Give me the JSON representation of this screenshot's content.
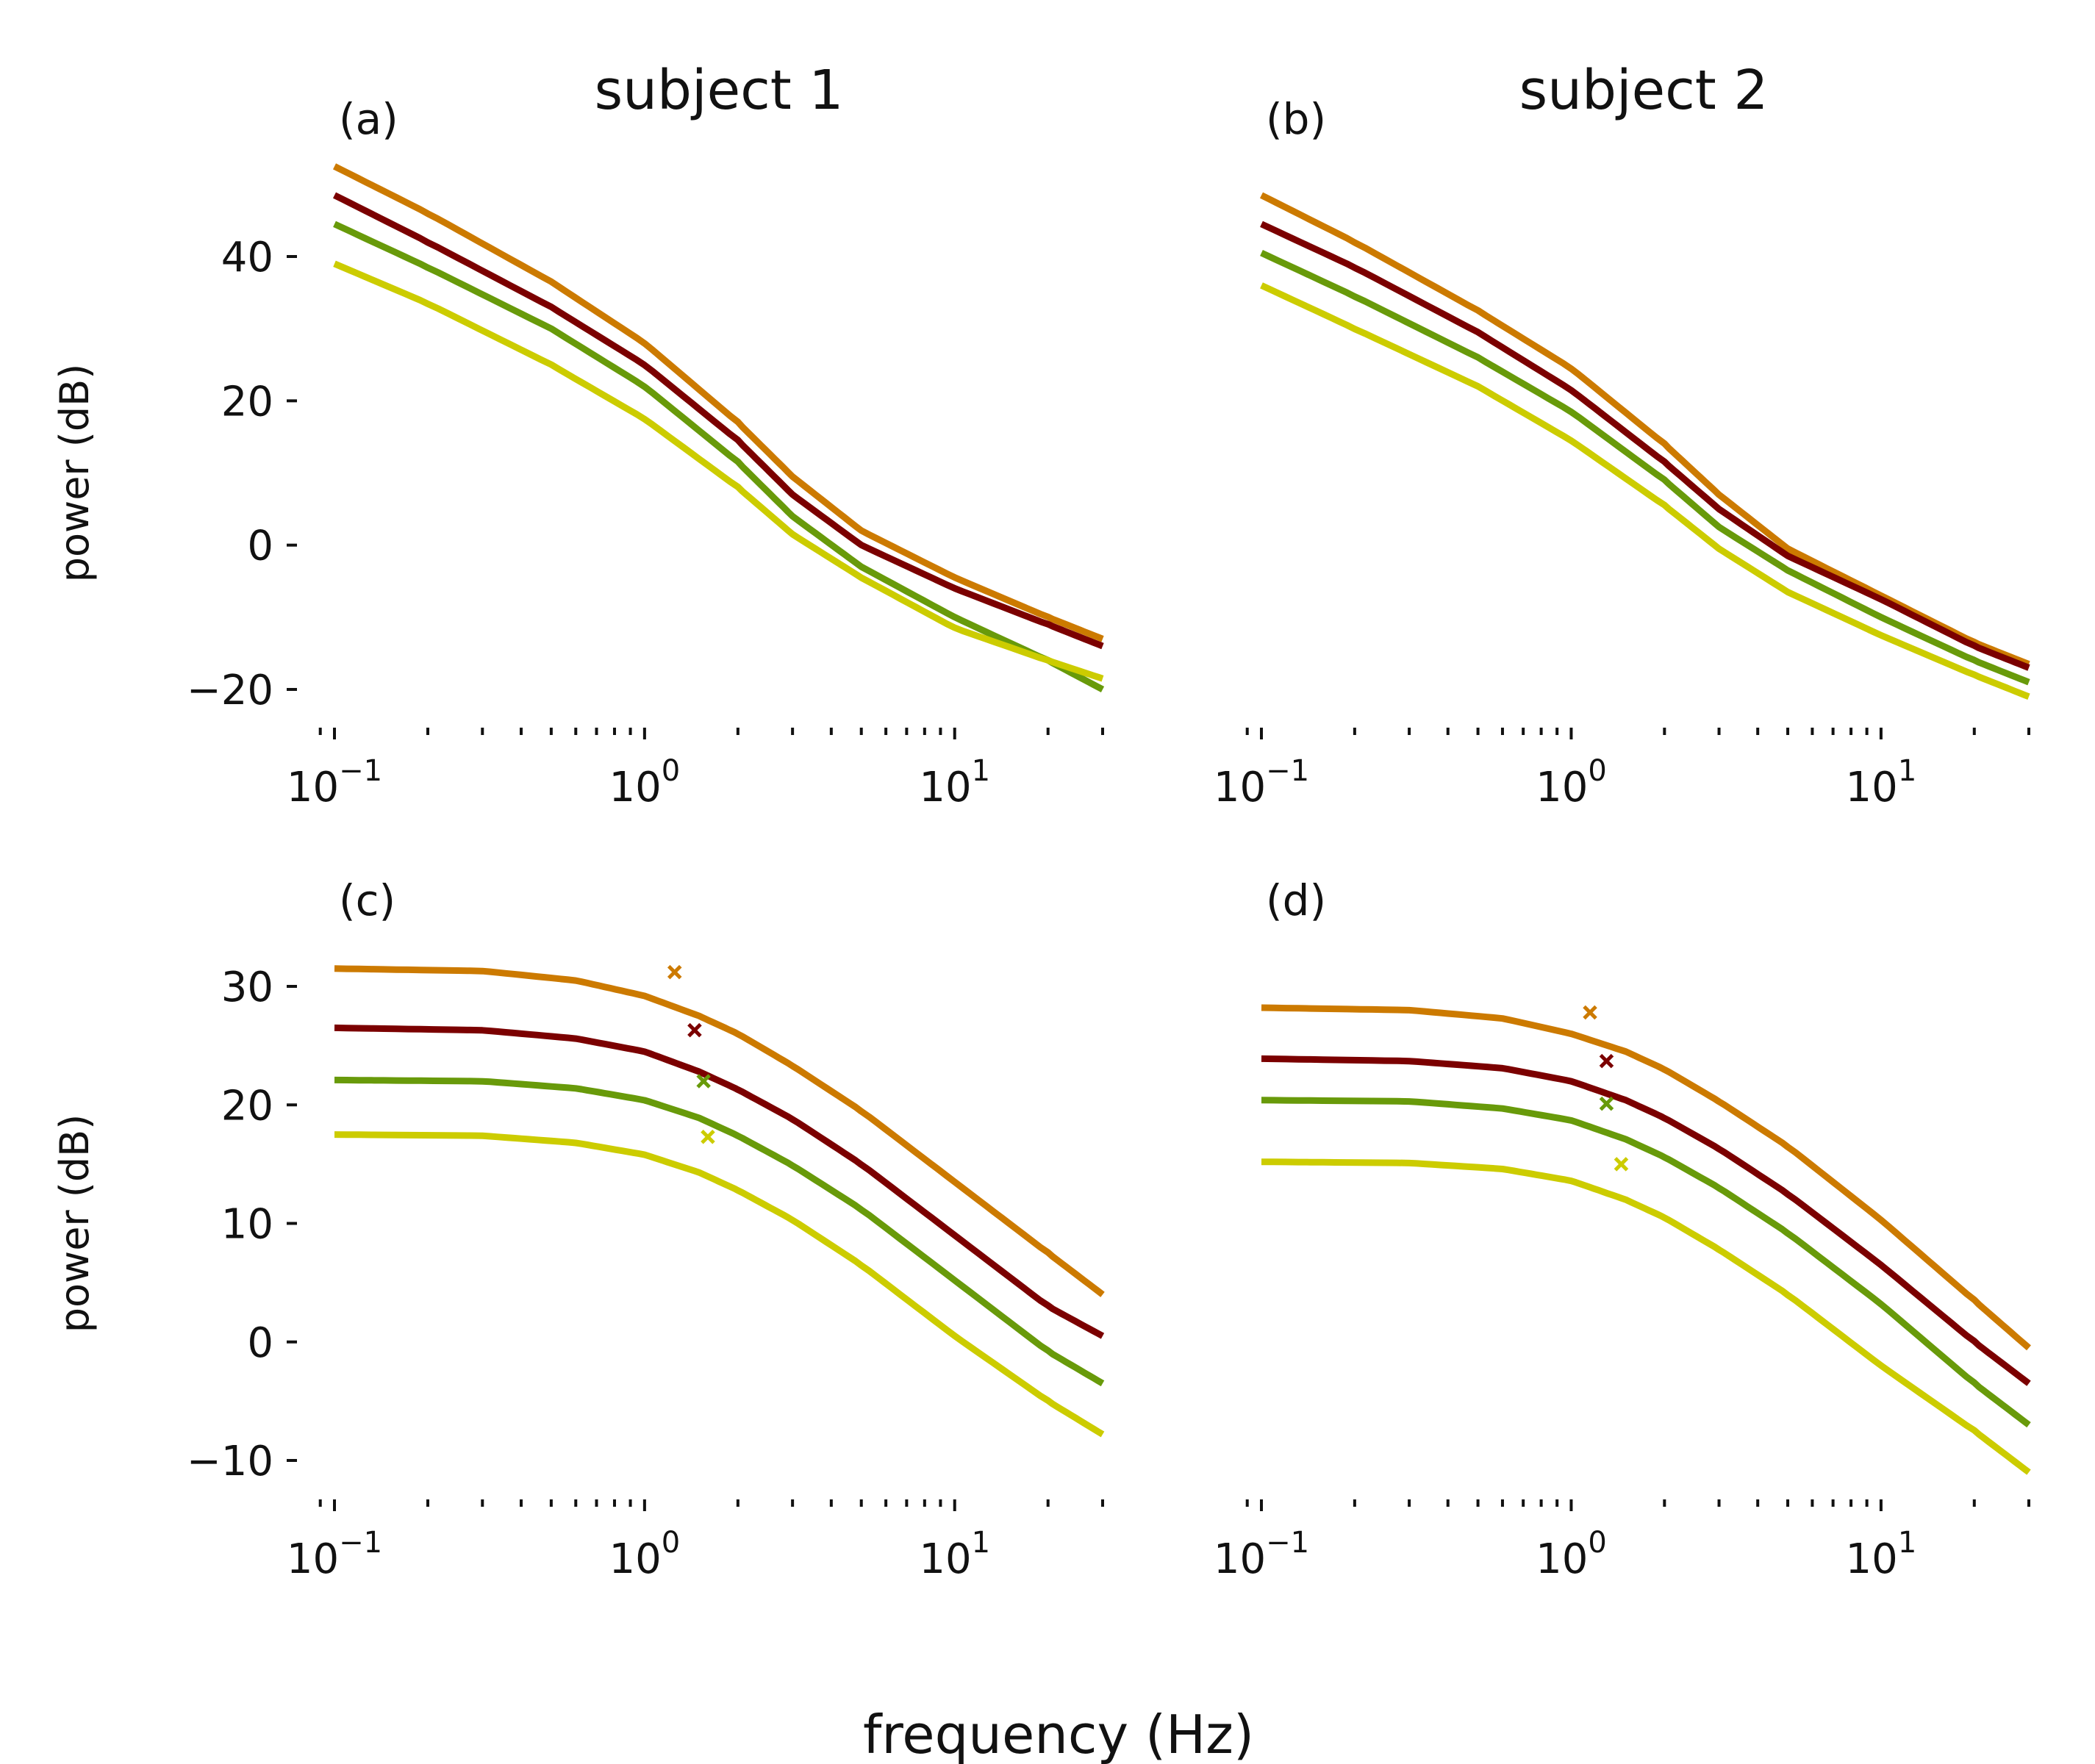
{
  "figure": {
    "column_titles": [
      "subject 1",
      "subject 2"
    ],
    "xlabel": "frequency (Hz)"
  },
  "colors": {
    "orange": "#cc7a00",
    "dark_red": "#7b0000",
    "green": "#689a0a",
    "yellow": "#cccc00"
  },
  "chart_data": [
    {
      "type": "line",
      "panel_label": "(a)",
      "title": "subject 1",
      "xlabel": "",
      "ylabel": "power (dB)",
      "xscale": "log",
      "xlim": [
        0.09,
        30
      ],
      "ylim": [
        -24,
        56
      ],
      "yticks": [
        -20,
        0,
        20,
        40
      ],
      "xticks": [
        0.1,
        1,
        10
      ],
      "xtick_labels": [
        {
          "base": "10",
          "exp": "−1"
        },
        {
          "base": "10",
          "exp": "0"
        },
        {
          "base": "10",
          "exp": "1"
        }
      ],
      "grid": false,
      "series": [
        {
          "color": "#cc7a00",
          "x": [
            0.1,
            0.2,
            0.5,
            1,
            2,
            3,
            5,
            10,
            20,
            30
          ],
          "y": [
            52.5,
            46,
            36.5,
            28,
            17,
            9.5,
            2,
            -4.5,
            -10,
            -13
          ]
        },
        {
          "color": "#7b0000",
          "x": [
            0.1,
            0.2,
            0.5,
            1,
            2,
            3,
            5,
            10,
            20,
            30
          ],
          "y": [
            48.5,
            42,
            33,
            25,
            14.5,
            7,
            0,
            -6,
            -11,
            -14
          ]
        },
        {
          "color": "#689a0a",
          "x": [
            0.1,
            0.2,
            0.5,
            1,
            2,
            3,
            5,
            10,
            20,
            30
          ],
          "y": [
            44.5,
            38.5,
            30,
            22,
            11.5,
            4,
            -3,
            -10,
            -16,
            -20
          ]
        },
        {
          "color": "#cccc00",
          "x": [
            0.1,
            0.2,
            0.5,
            1,
            2,
            3,
            5,
            10,
            20,
            30
          ],
          "y": [
            39,
            33.5,
            25,
            17.5,
            8,
            1.5,
            -4.5,
            -11.5,
            -16,
            -18.5
          ]
        }
      ]
    },
    {
      "type": "line",
      "panel_label": "(b)",
      "title": "subject 2",
      "xlabel": "",
      "ylabel": "",
      "xscale": "log",
      "xlim": [
        0.09,
        30
      ],
      "ylim": [
        -24,
        56
      ],
      "yticks": [],
      "xticks": [
        0.1,
        1,
        10
      ],
      "xtick_labels": [
        {
          "base": "10",
          "exp": "−1"
        },
        {
          "base": "10",
          "exp": "0"
        },
        {
          "base": "10",
          "exp": "1"
        }
      ],
      "grid": false,
      "series": [
        {
          "color": "#cc7a00",
          "x": [
            0.1,
            0.2,
            0.5,
            1,
            2,
            3,
            5,
            10,
            20,
            30
          ],
          "y": [
            48.5,
            42,
            32.5,
            24.5,
            14,
            7,
            -0.5,
            -7,
            -13.5,
            -16.5
          ]
        },
        {
          "color": "#7b0000",
          "x": [
            0.1,
            0.2,
            0.5,
            1,
            2,
            3,
            5,
            10,
            20,
            30
          ],
          "y": [
            44.5,
            38.5,
            29.5,
            21.5,
            11.5,
            5,
            -1.5,
            -7.5,
            -14,
            -17
          ]
        },
        {
          "color": "#689a0a",
          "x": [
            0.1,
            0.2,
            0.5,
            1,
            2,
            3,
            5,
            10,
            20,
            30
          ],
          "y": [
            40.5,
            34.5,
            26,
            18.5,
            9,
            2.5,
            -3.5,
            -10,
            -16,
            -19
          ]
        },
        {
          "color": "#cccc00",
          "x": [
            0.1,
            0.2,
            0.5,
            1,
            2,
            3,
            5,
            10,
            20,
            30
          ],
          "y": [
            36,
            30,
            22,
            14.5,
            5.5,
            -0.5,
            -6.5,
            -12.5,
            -18,
            -21
          ]
        }
      ]
    },
    {
      "type": "line",
      "panel_label": "(c)",
      "title": "",
      "xlabel": "",
      "ylabel": "power (dB)",
      "xscale": "log",
      "xlim": [
        0.09,
        30
      ],
      "ylim": [
        -13.5,
        35.5
      ],
      "yticks": [
        -10,
        0,
        10,
        20,
        30
      ],
      "xticks": [
        0.1,
        1,
        10
      ],
      "xtick_labels": [
        {
          "base": "10",
          "exp": "−1"
        },
        {
          "base": "10",
          "exp": "0"
        },
        {
          "base": "10",
          "exp": "1"
        }
      ],
      "grid": false,
      "series": [
        {
          "color": "#cc7a00",
          "x": [
            0.1,
            0.3,
            0.6,
            1,
            1.5,
            2,
            3,
            5,
            10,
            20,
            30
          ],
          "y": [
            31.5,
            31.3,
            30.5,
            29.2,
            27.5,
            26,
            23.3,
            19.5,
            13.5,
            7.5,
            4
          ],
          "markers": [
            {
              "x": 1.25,
              "y": 31.2
            }
          ]
        },
        {
          "color": "#7b0000",
          "x": [
            0.1,
            0.3,
            0.6,
            1,
            1.5,
            2,
            3,
            5,
            10,
            20,
            30
          ],
          "y": [
            26.5,
            26.3,
            25.6,
            24.5,
            22.8,
            21.3,
            18.8,
            15,
            9,
            3,
            0.5
          ],
          "markers": [
            {
              "x": 1.45,
              "y": 26.3
            }
          ]
        },
        {
          "color": "#689a0a",
          "x": [
            0.1,
            0.3,
            0.6,
            1,
            1.5,
            2,
            3,
            5,
            10,
            20,
            30
          ],
          "y": [
            22.1,
            22,
            21.4,
            20.4,
            18.9,
            17.4,
            14.9,
            11.2,
            5.2,
            -0.8,
            -3.5
          ],
          "markers": [
            {
              "x": 1.55,
              "y": 22
            }
          ]
        },
        {
          "color": "#cccc00",
          "x": [
            0.1,
            0.3,
            0.6,
            1,
            1.5,
            2,
            3,
            5,
            10,
            20,
            30
          ],
          "y": [
            17.5,
            17.4,
            16.8,
            15.8,
            14.3,
            12.8,
            10.3,
            6.5,
            0.5,
            -5,
            -7.8
          ],
          "markers": [
            {
              "x": 1.6,
              "y": 17.3
            }
          ]
        }
      ]
    },
    {
      "type": "line",
      "panel_label": "(d)",
      "title": "",
      "xlabel": "",
      "ylabel": "",
      "xscale": "log",
      "xlim": [
        0.09,
        30
      ],
      "ylim": [
        -13.5,
        35.5
      ],
      "yticks": [],
      "xticks": [
        0.1,
        1,
        10
      ],
      "xtick_labels": [
        {
          "base": "10",
          "exp": "−1"
        },
        {
          "base": "10",
          "exp": "0"
        },
        {
          "base": "10",
          "exp": "1"
        }
      ],
      "grid": false,
      "series": [
        {
          "color": "#cc7a00",
          "x": [
            0.1,
            0.3,
            0.6,
            1,
            1.5,
            2,
            3,
            5,
            10,
            20,
            30
          ],
          "y": [
            28.2,
            28,
            27.3,
            26,
            24.5,
            23,
            20.3,
            16.5,
            10.3,
            3.5,
            -0.5
          ],
          "markers": [
            {
              "x": 1.15,
              "y": 27.8
            }
          ]
        },
        {
          "color": "#7b0000",
          "x": [
            0.1,
            0.3,
            0.6,
            1,
            1.5,
            2,
            3,
            5,
            10,
            20,
            30
          ],
          "y": [
            23.9,
            23.7,
            23.1,
            22,
            20.4,
            18.9,
            16.3,
            12.5,
            6.5,
            0,
            -3.5
          ],
          "markers": [
            {
              "x": 1.3,
              "y": 23.7
            }
          ]
        },
        {
          "color": "#689a0a",
          "x": [
            0.1,
            0.3,
            0.6,
            1,
            1.5,
            2,
            3,
            5,
            10,
            20,
            30
          ],
          "y": [
            20.4,
            20.3,
            19.7,
            18.7,
            17.1,
            15.6,
            13,
            9.2,
            3.2,
            -3.5,
            -7
          ],
          "markers": [
            {
              "x": 1.3,
              "y": 20.1
            }
          ]
        },
        {
          "color": "#cccc00",
          "x": [
            0.1,
            0.3,
            0.6,
            1,
            1.5,
            2,
            3,
            5,
            10,
            20,
            30
          ],
          "y": [
            15.2,
            15.1,
            14.6,
            13.6,
            12,
            10.5,
            7.8,
            4,
            -2,
            -7.5,
            -11
          ],
          "markers": [
            {
              "x": 1.45,
              "y": 15
            }
          ]
        }
      ]
    }
  ]
}
